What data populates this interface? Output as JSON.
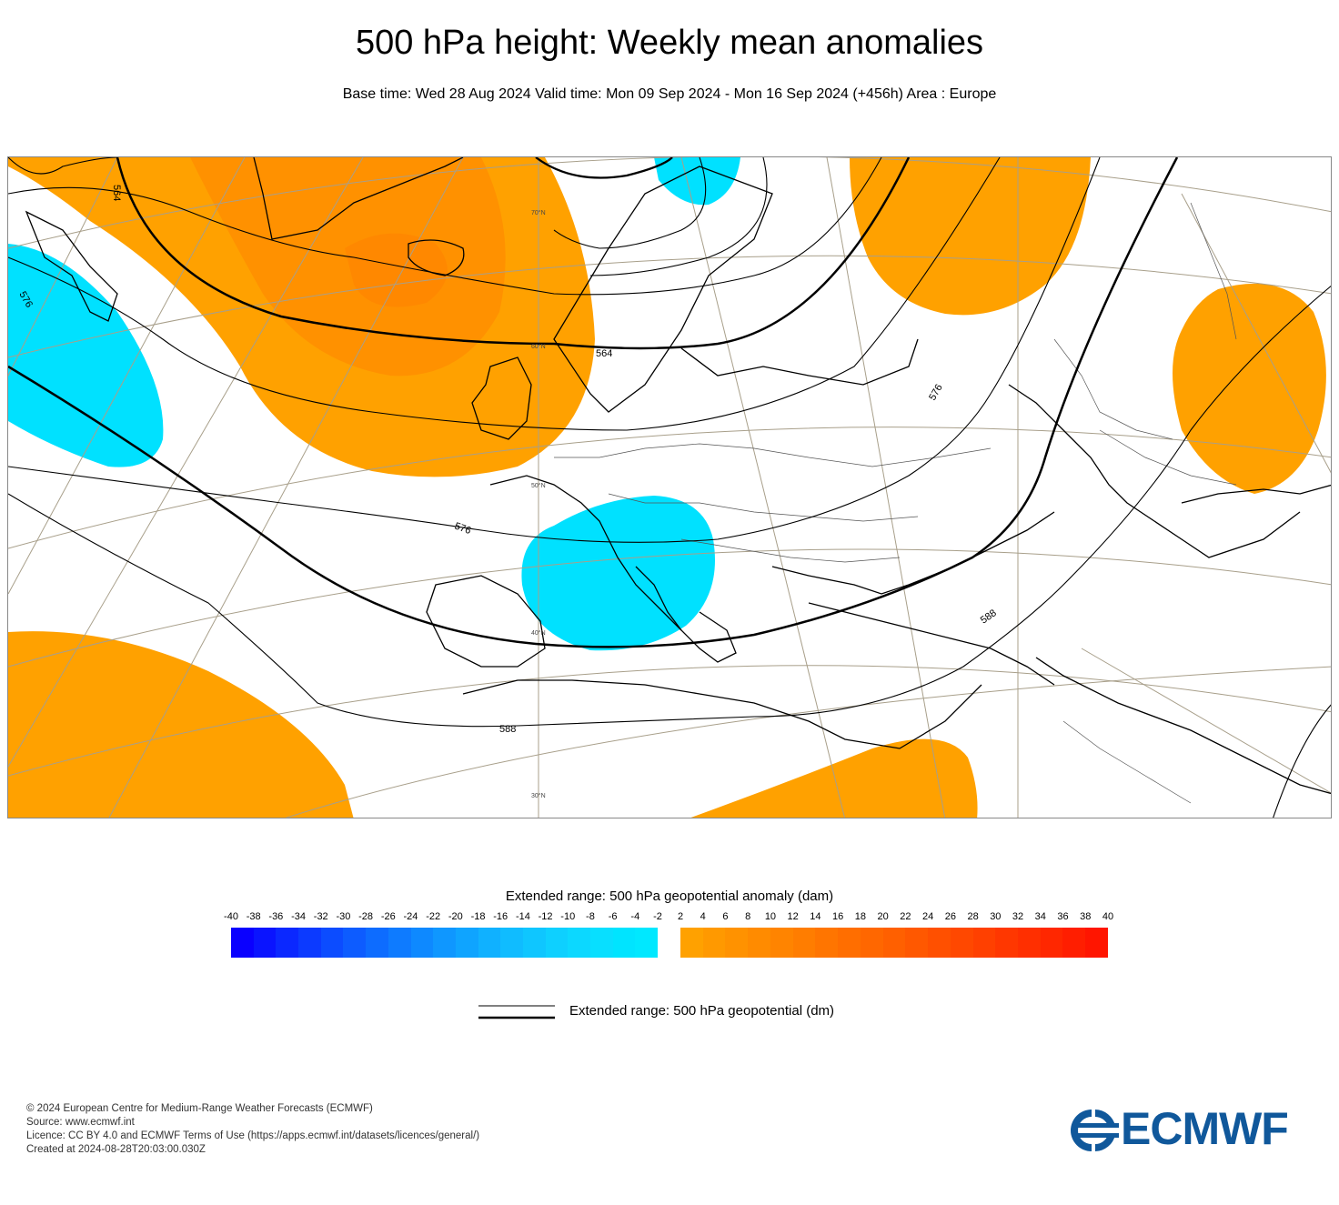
{
  "header": {
    "title": "500 hPa height: Weekly mean anomalies",
    "subtitle": "Base time: Wed 28 Aug 2024 Valid time: Mon 09 Sep 2024 - Mon 16 Sep 2024 (+456h) Area : Europe"
  },
  "map": {
    "latitude_labels": [
      "70°N",
      "60°N",
      "50°N",
      "40°N",
      "30°N"
    ],
    "contour_labels": [
      "564",
      "576",
      "576",
      "576",
      "588",
      "588",
      "564"
    ],
    "colors": {
      "positive_anomaly": "#ffa100",
      "positive_anomaly_strong": "#ff8a00",
      "negative_anomaly": "#00e1ff",
      "contour": "#000000",
      "graticule": "#a89f8a",
      "coastline": "#000000"
    }
  },
  "legend": {
    "title": "Extended range: 500 hPa geopotential anomaly (dam)",
    "ticks": [
      "-40",
      "-38",
      "-36",
      "-34",
      "-32",
      "-30",
      "-28",
      "-26",
      "-24",
      "-22",
      "-20",
      "-18",
      "-16",
      "-14",
      "-12",
      "-10",
      "-8",
      "-6",
      "-4",
      "-2",
      "2",
      "4",
      "6",
      "8",
      "10",
      "12",
      "14",
      "16",
      "18",
      "20",
      "22",
      "24",
      "26",
      "28",
      "30",
      "32",
      "34",
      "36",
      "38",
      "40"
    ],
    "negative_colors": [
      "#0a00ff",
      "#0a14ff",
      "#0b28ff",
      "#0c3aff",
      "#0c4cff",
      "#0d5cff",
      "#0d6cff",
      "#0e7bff",
      "#0e89ff",
      "#0f97ff",
      "#0fa4ff",
      "#10b1ff",
      "#10bcff",
      "#0fc6ff",
      "#0ed0ff",
      "#0cd8ff",
      "#08dfff",
      "#00e4ff",
      "#00e8ff"
    ],
    "positive_colors": [
      "#ffa100",
      "#ff9900",
      "#ff9200",
      "#ff8b00",
      "#ff8400",
      "#ff7d00",
      "#ff7500",
      "#ff6e00",
      "#ff6700",
      "#ff6000",
      "#ff5800",
      "#ff5000",
      "#ff4800",
      "#ff4000",
      "#ff3700",
      "#ff2f00",
      "#ff2700",
      "#ff1e00",
      "#ff1500"
    ],
    "line_label": "Extended range: 500 hPa geopotential (dm)"
  },
  "footer": {
    "copyright": "© 2024 European Centre for Medium-Range Weather Forecasts (ECMWF)",
    "source": "Source: www.ecmwf.int",
    "licence": "Licence: CC BY 4.0 and ECMWF Terms of Use (https://apps.ecmwf.int/datasets/licences/general/)",
    "created": "Created at 2024-08-28T20:03:00.030Z",
    "logo_text": "ECMWF"
  }
}
